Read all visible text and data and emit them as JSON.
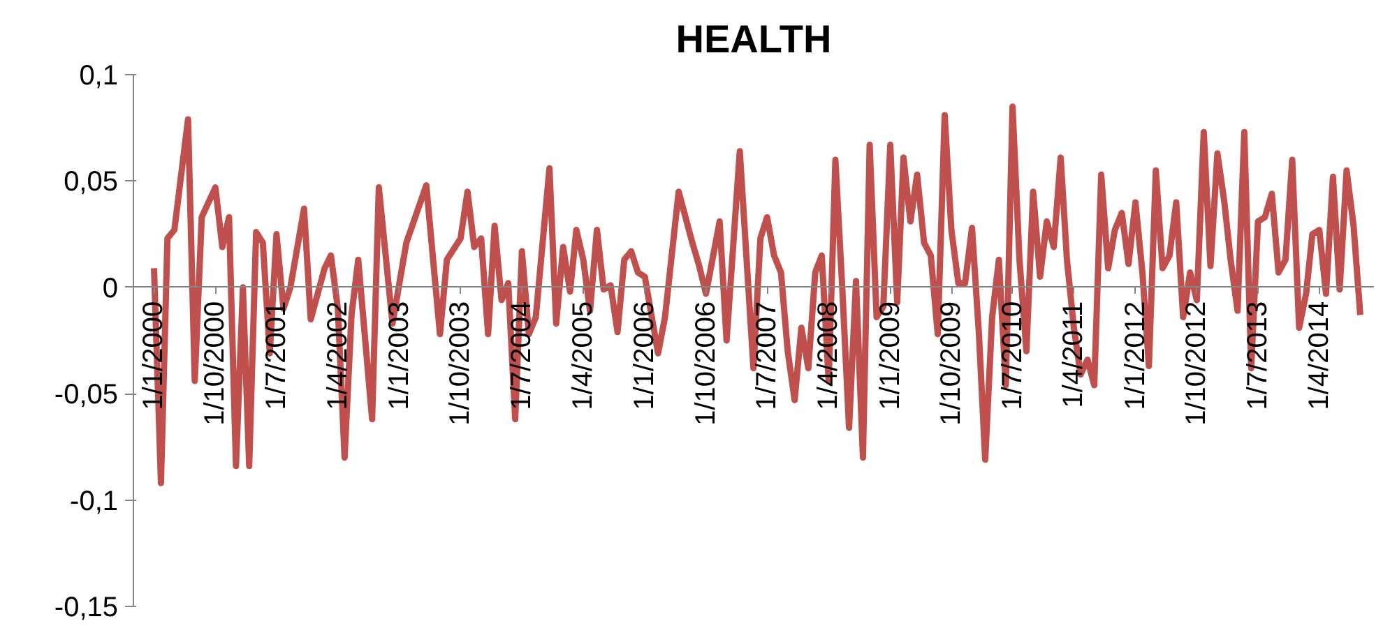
{
  "chart_data": {
    "type": "line",
    "title": "HEALTH",
    "x": [
      "2000-01",
      "2000-02",
      "2000-03",
      "2000-04",
      "2000-06",
      "2000-07",
      "2000-08",
      "2000-10",
      "2000-11",
      "2000-12",
      "2001-01",
      "2001-02",
      "2001-03",
      "2001-04",
      "2001-05",
      "2001-06",
      "2001-07",
      "2001-08",
      "2001-09",
      "2001-11",
      "2001-12",
      "2002-02",
      "2002-03",
      "2002-04",
      "2002-05",
      "2002-06",
      "2002-07",
      "2002-09",
      "2002-10",
      "2002-12",
      "2003-02",
      "2003-05",
      "2003-07",
      "2003-08",
      "2003-10",
      "2003-11",
      "2003-12",
      "2004-01",
      "2004-02",
      "2004-03",
      "2004-04",
      "2004-05",
      "2004-06",
      "2004-07",
      "2004-08",
      "2004-09",
      "2004-11",
      "2004-12",
      "2005-01",
      "2005-02",
      "2005-03",
      "2005-04",
      "2005-05",
      "2005-06",
      "2005-07",
      "2005-08",
      "2005-09",
      "2005-10",
      "2005-11",
      "2005-12",
      "2006-01",
      "2006-03",
      "2006-04",
      "2006-06",
      "2006-08",
      "2006-09",
      "2006-10",
      "2006-12",
      "2007-01",
      "2007-03",
      "2007-05",
      "2007-06",
      "2007-07",
      "2007-08",
      "2007-09",
      "2007-10",
      "2007-11",
      "2007-12",
      "2008-01",
      "2008-02",
      "2008-03",
      "2008-04",
      "2008-05",
      "2008-06",
      "2008-07",
      "2008-08",
      "2008-09",
      "2008-10",
      "2008-11",
      "2008-12",
      "2009-01",
      "2009-02",
      "2009-03",
      "2009-04",
      "2009-05",
      "2009-06",
      "2009-07",
      "2009-08",
      "2009-09",
      "2009-10",
      "2009-11",
      "2009-12",
      "2010-01",
      "2010-02",
      "2010-03",
      "2010-04",
      "2010-05",
      "2010-06",
      "2010-07",
      "2010-08",
      "2010-09",
      "2010-10",
      "2010-11",
      "2010-12",
      "2011-01",
      "2011-02",
      "2011-03",
      "2011-04",
      "2011-05",
      "2011-06",
      "2011-07",
      "2011-08",
      "2011-09",
      "2011-10",
      "2011-11",
      "2011-12",
      "2012-01",
      "2012-02",
      "2012-03",
      "2012-04",
      "2012-05",
      "2012-06",
      "2012-07",
      "2012-08",
      "2012-09",
      "2012-10",
      "2012-11",
      "2012-12",
      "2013-01",
      "2013-02",
      "2013-03",
      "2013-04",
      "2013-05",
      "2013-06",
      "2013-07",
      "2013-08",
      "2013-09",
      "2013-10",
      "2013-11",
      "2013-12",
      "2014-01",
      "2014-02",
      "2014-03",
      "2014-04",
      "2014-05",
      "2014-06",
      "2014-07",
      "2014-08",
      "2014-09",
      "2014-10"
    ],
    "series": [
      {
        "color": "#c0504d",
        "values": [
          0.009,
          -0.092,
          0.023,
          0.027,
          0.079,
          -0.044,
          0.033,
          0.047,
          0.019,
          0.033,
          -0.084,
          0,
          -0.084,
          0.026,
          0.021,
          -0.031,
          0.025,
          -0.01,
          0,
          0.037,
          -0.015,
          0.009,
          0.015,
          -0.01,
          -0.08,
          -0.013,
          0.013,
          -0.062,
          0.047,
          -0.017,
          0.021,
          0.048,
          -0.022,
          0.013,
          0.023,
          0.045,
          0.019,
          0.023,
          -0.022,
          0.029,
          -0.006,
          0.002,
          -0.062,
          0.017,
          -0.022,
          -0.014,
          0.056,
          -0.017,
          0.019,
          -0.002,
          0.027,
          0.013,
          -0.011,
          0.027,
          -0.001,
          0.001,
          -0.021,
          0.013,
          0.017,
          0.007,
          0.005,
          -0.031,
          -0.014,
          0.045,
          0.021,
          0.01,
          -0.003,
          0.031,
          -0.025,
          0.064,
          -0.038,
          0.023,
          0.033,
          0.015,
          0.007,
          -0.03,
          -0.053,
          -0.019,
          -0.038,
          0.007,
          0.015,
          -0.044,
          0.06,
          -0.001,
          -0.066,
          0.003,
          -0.08,
          0.067,
          -0.014,
          -0.009,
          0.067,
          -0.007,
          0.061,
          0.031,
          0.053,
          0.021,
          0.015,
          -0.022,
          0.081,
          0.027,
          0.002,
          0.002,
          0.028,
          -0.022,
          -0.081,
          -0.014,
          0.013,
          -0.046,
          0.085,
          0.013,
          -0.03,
          0.045,
          0.005,
          0.031,
          0.019,
          0.061,
          0.013,
          -0.019,
          -0.041,
          -0.034,
          -0.046,
          0.053,
          0.009,
          0.027,
          0.035,
          0.011,
          0.04,
          0.007,
          -0.037,
          0.055,
          0.009,
          0.015,
          0.04,
          -0.014,
          0.007,
          -0.006,
          0.073,
          0.01,
          0.063,
          0.04,
          0.013,
          -0.011,
          0.073,
          -0.038,
          0.031,
          0.033,
          0.044,
          0.007,
          0.013,
          0.06,
          -0.019,
          -0.003,
          0.025,
          0.027,
          -0.003,
          0.052,
          -0.001,
          0.055,
          0.029,
          -0.013
        ]
      }
    ],
    "xlim": [
      "1999-10-01",
      "2014-12-01"
    ],
    "xticks": [
      {
        "value": "2000-01-01",
        "label": "1/1/2000"
      },
      {
        "value": "2000-10-01",
        "label": "1/10/2000"
      },
      {
        "value": "2001-07-01",
        "label": "1/7/2001"
      },
      {
        "value": "2002-04-01",
        "label": "1/4/2002"
      },
      {
        "value": "2003-01-01",
        "label": "1/1/2003"
      },
      {
        "value": "2003-10-01",
        "label": "1/10/2003"
      },
      {
        "value": "2004-07-01",
        "label": "1/7/2004"
      },
      {
        "value": "2005-04-01",
        "label": "1/4/2005"
      },
      {
        "value": "2006-01-01",
        "label": "1/1/2006"
      },
      {
        "value": "2006-10-01",
        "label": "1/10/2006"
      },
      {
        "value": "2007-07-01",
        "label": "1/7/2007"
      },
      {
        "value": "2008-04-01",
        "label": "1/4/2008"
      },
      {
        "value": "2009-01-01",
        "label": "1/1/2009"
      },
      {
        "value": "2009-10-01",
        "label": "1/10/2009"
      },
      {
        "value": "2010-07-01",
        "label": "1/7/2010"
      },
      {
        "value": "2011-04-01",
        "label": "1/4/2011"
      },
      {
        "value": "2012-01-01",
        "label": "1/1/2012"
      },
      {
        "value": "2012-10-01",
        "label": "1/10/2012"
      },
      {
        "value": "2013-07-01",
        "label": "1/7/2013"
      },
      {
        "value": "2014-04-01",
        "label": "1/4/2014"
      }
    ],
    "ylim": [
      -0.15,
      0.1
    ],
    "yticks": [
      {
        "value": -0.15,
        "label": "-0,15"
      },
      {
        "value": -0.1,
        "label": "-0,1"
      },
      {
        "value": -0.05,
        "label": "-0,05"
      },
      0,
      {
        "value": 0.05,
        "label": "0,05"
      },
      {
        "value": 0.1,
        "label": "0,1"
      }
    ],
    "grid": false,
    "marker": "none",
    "line_style": "solid"
  }
}
